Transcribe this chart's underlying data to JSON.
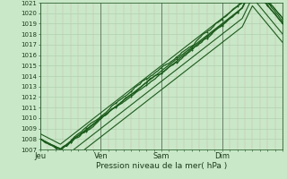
{
  "title": "",
  "xlabel": "Pression niveau de la mer( hPa )",
  "ylabel": "",
  "bg_color": "#c8e8c8",
  "plot_bg_color": "#c8e8c8",
  "grid_color": "#aaccaa",
  "line_color": "#1a5c1a",
  "ylim": [
    1007,
    1021
  ],
  "xlim": [
    0,
    96
  ],
  "yticks": [
    1007,
    1008,
    1009,
    1010,
    1011,
    1012,
    1013,
    1014,
    1015,
    1016,
    1017,
    1018,
    1019,
    1020,
    1021
  ],
  "day_ticks": [
    0,
    24,
    48,
    72
  ],
  "day_labels": [
    "Jeu",
    "Ven",
    "Sam",
    "Dim"
  ],
  "num_hours": 96
}
